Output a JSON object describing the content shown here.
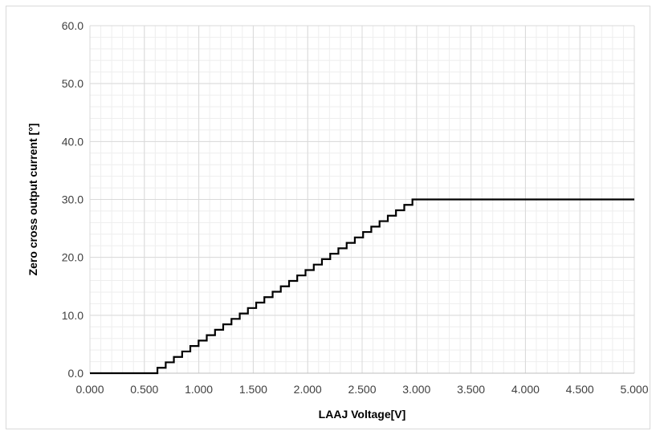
{
  "chart_data": {
    "type": "line",
    "title": "",
    "xlabel": "LAAJ Voltage[V]",
    "ylabel": "Zero cross output current [°]",
    "xlim": [
      0,
      5
    ],
    "ylim": [
      0,
      60
    ],
    "x_ticks": [
      "0.000",
      "0.500",
      "1.000",
      "1.500",
      "2.000",
      "2.500",
      "3.000",
      "3.500",
      "4.000",
      "4.500",
      "5.000"
    ],
    "y_ticks": [
      "0.0",
      "10.0",
      "20.0",
      "30.0",
      "40.0",
      "50.0",
      "60.0"
    ],
    "major_grid": true,
    "minor_grid": true,
    "legend": "none",
    "line_color": "#000000",
    "step_curve": {
      "start_x": 0.62,
      "step_width_x": 0.0755,
      "step_height_y": 0.9375,
      "step_count": 32,
      "plateau_y": 30.0,
      "end_x": 5.0
    },
    "points": [
      [
        0.0,
        0.0
      ],
      [
        0.62,
        0.0
      ],
      [
        0.62,
        0.94
      ],
      [
        0.696,
        0.94
      ],
      [
        0.696,
        1.88
      ],
      [
        0.771,
        1.88
      ],
      [
        0.771,
        2.81
      ],
      [
        0.847,
        2.81
      ],
      [
        0.847,
        3.75
      ],
      [
        0.922,
        3.75
      ],
      [
        0.922,
        4.69
      ],
      [
        0.998,
        4.69
      ],
      [
        0.998,
        5.63
      ],
      [
        1.073,
        5.63
      ],
      [
        1.073,
        6.56
      ],
      [
        1.149,
        6.56
      ],
      [
        1.149,
        7.5
      ],
      [
        1.224,
        7.5
      ],
      [
        1.224,
        8.44
      ],
      [
        1.3,
        8.44
      ],
      [
        1.3,
        9.38
      ],
      [
        1.376,
        9.38
      ],
      [
        1.376,
        10.31
      ],
      [
        1.451,
        10.31
      ],
      [
        1.451,
        11.25
      ],
      [
        1.527,
        11.25
      ],
      [
        1.527,
        12.19
      ],
      [
        1.602,
        12.19
      ],
      [
        1.602,
        13.13
      ],
      [
        1.678,
        13.13
      ],
      [
        1.678,
        14.06
      ],
      [
        1.753,
        14.06
      ],
      [
        1.753,
        15.0
      ],
      [
        1.829,
        15.0
      ],
      [
        1.829,
        15.94
      ],
      [
        1.904,
        15.94
      ],
      [
        1.904,
        16.88
      ],
      [
        1.98,
        16.88
      ],
      [
        1.98,
        17.81
      ],
      [
        2.056,
        17.81
      ],
      [
        2.056,
        18.75
      ],
      [
        2.131,
        18.75
      ],
      [
        2.131,
        19.69
      ],
      [
        2.207,
        19.69
      ],
      [
        2.207,
        20.63
      ],
      [
        2.282,
        20.63
      ],
      [
        2.282,
        21.56
      ],
      [
        2.358,
        21.56
      ],
      [
        2.358,
        22.5
      ],
      [
        2.433,
        22.5
      ],
      [
        2.433,
        23.44
      ],
      [
        2.509,
        23.44
      ],
      [
        2.509,
        24.38
      ],
      [
        2.584,
        24.38
      ],
      [
        2.584,
        25.31
      ],
      [
        2.66,
        25.31
      ],
      [
        2.66,
        26.25
      ],
      [
        2.736,
        26.25
      ],
      [
        2.736,
        27.19
      ],
      [
        2.811,
        27.19
      ],
      [
        2.811,
        28.13
      ],
      [
        2.887,
        28.13
      ],
      [
        2.887,
        29.06
      ],
      [
        2.962,
        29.06
      ],
      [
        2.962,
        30.0
      ],
      [
        5.0,
        30.0
      ]
    ]
  }
}
